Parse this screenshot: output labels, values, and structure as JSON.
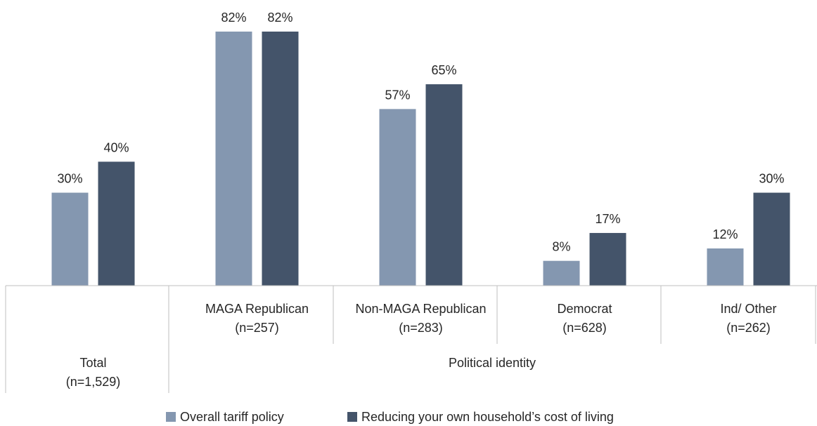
{
  "chart_data": {
    "type": "bar",
    "title": "",
    "xlabel": "",
    "ylabel": "",
    "ylim": [
      0,
      82
    ],
    "grid": false,
    "legend": "bottom",
    "categories": [
      {
        "lines": [
          "Total",
          "(n=1,529)"
        ],
        "group": null
      },
      {
        "lines": [
          "MAGA Republican",
          "(n=257)"
        ],
        "group": "Political identity"
      },
      {
        "lines": [
          "Non-MAGA Republican",
          "(n=283)"
        ],
        "group": "Political identity"
      },
      {
        "lines": [
          "Democrat",
          "(n=628)"
        ],
        "group": "Political identity"
      },
      {
        "lines": [
          "Ind/ Other",
          "(n=262)"
        ],
        "group": "Political identity"
      }
    ],
    "group_label": "Political identity",
    "series": [
      {
        "name": "Overall tariff policy",
        "color": "#8497b0",
        "values": [
          30,
          82,
          57,
          8,
          12
        ],
        "labels": [
          "30%",
          "82%",
          "57%",
          "8%",
          "12%"
        ]
      },
      {
        "name": "Reducing your own household’s cost of living",
        "color": "#44546a",
        "values": [
          40,
          82,
          65,
          17,
          30
        ],
        "labels": [
          "40%",
          "82%",
          "65%",
          "17%",
          "30%"
        ]
      }
    ]
  }
}
